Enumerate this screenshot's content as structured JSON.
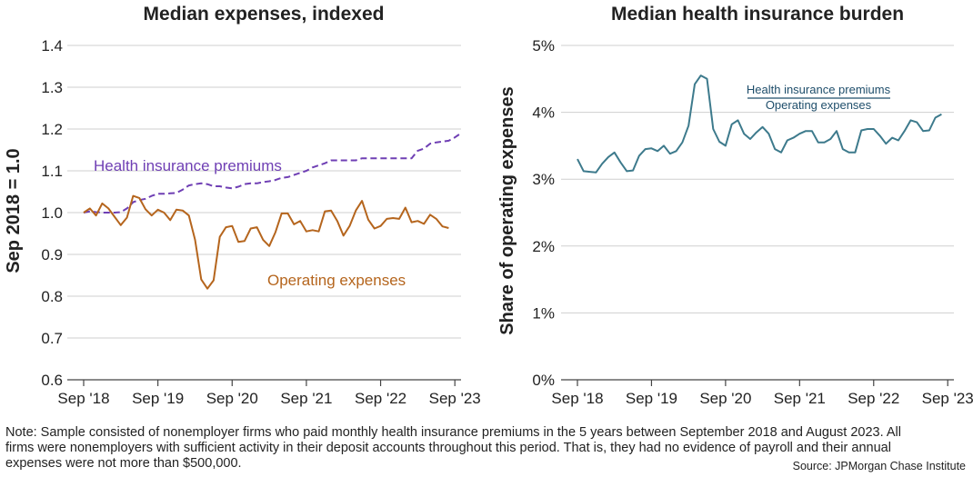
{
  "chart_data": [
    {
      "type": "line",
      "title": "Median expenses, indexed",
      "ylabel": "Sep 2018 = 1.0",
      "xlabel": "",
      "ylim": [
        0.6,
        1.4
      ],
      "yticks": [
        0.6,
        0.7,
        0.8,
        0.9,
        1.0,
        1.1,
        1.2,
        1.3,
        1.4
      ],
      "ytick_labels": [
        "0.6",
        "0.7",
        "0.8",
        "0.9",
        "1.0",
        "1.1",
        "1.2",
        "1.3",
        "1.4"
      ],
      "xlim": [
        0,
        61
      ],
      "xticks": [
        0,
        12,
        24,
        36,
        48,
        60
      ],
      "xtick_labels": [
        "Sep '18",
        "Sep '19",
        "Sep '20",
        "Sep '21",
        "Sep '22",
        "Sep '23"
      ],
      "grid": true,
      "series": [
        {
          "name": "Health insurance premiums",
          "style": "dashed",
          "color": "#6f3fb4",
          "values": [
            1.0,
            1.003,
            1.001,
            1.0,
            1.0,
            1.0,
            1.001,
            1.01,
            1.025,
            1.03,
            1.033,
            1.04,
            1.045,
            1.045,
            1.046,
            1.047,
            1.055,
            1.065,
            1.068,
            1.07,
            1.068,
            1.063,
            1.063,
            1.06,
            1.058,
            1.062,
            1.068,
            1.07,
            1.07,
            1.073,
            1.075,
            1.078,
            1.083,
            1.085,
            1.09,
            1.095,
            1.1,
            1.108,
            1.113,
            1.118,
            1.125,
            1.125,
            1.125,
            1.125,
            1.125,
            1.13,
            1.13,
            1.13,
            1.13,
            1.13,
            1.13,
            1.13,
            1.13,
            1.13,
            1.148,
            1.153,
            1.165,
            1.168,
            1.17,
            1.172,
            1.18,
            1.19
          ]
        },
        {
          "name": "Operating expenses",
          "style": "solid",
          "color": "#b5651d",
          "values": [
            1.0,
            1.01,
            0.993,
            1.022,
            1.01,
            0.99,
            0.97,
            0.988,
            1.04,
            1.035,
            1.008,
            0.993,
            1.007,
            1.0,
            0.982,
            1.007,
            1.005,
            0.993,
            0.935,
            0.84,
            0.818,
            0.838,
            0.942,
            0.965,
            0.968,
            0.93,
            0.932,
            0.962,
            0.965,
            0.935,
            0.92,
            0.953,
            0.998,
            0.998,
            0.972,
            0.98,
            0.955,
            0.958,
            0.955,
            1.003,
            1.005,
            0.98,
            0.945,
            0.968,
            1.005,
            1.028,
            0.983,
            0.962,
            0.968,
            0.985,
            0.987,
            0.985,
            1.012,
            0.977,
            0.98,
            0.973,
            0.995,
            0.985,
            0.967,
            0.963
          ]
        }
      ],
      "annotations": [
        "Health insurance premiums",
        "Operating expenses"
      ]
    },
    {
      "type": "line",
      "title": "Median health insurance burden",
      "ylabel": "Share of operating expenses",
      "xlabel": "",
      "ylim": [
        0,
        5
      ],
      "yticks": [
        0,
        1,
        2,
        3,
        4,
        5
      ],
      "ytick_labels": [
        "0%",
        "1%",
        "2%",
        "3%",
        "4%",
        "5%"
      ],
      "xlim": [
        0,
        61
      ],
      "xticks": [
        0,
        12,
        24,
        36,
        48,
        60
      ],
      "xtick_labels": [
        "Sep '18",
        "Sep '19",
        "Sep '20",
        "Sep '21",
        "Sep '22",
        "Sep '23"
      ],
      "grid": true,
      "series": [
        {
          "name": "Health insurance premiums / Operating expenses",
          "style": "solid",
          "color": "#3d7a8c",
          "values": [
            3.3,
            3.12,
            3.11,
            3.1,
            3.23,
            3.33,
            3.4,
            3.25,
            3.12,
            3.13,
            3.35,
            3.45,
            3.46,
            3.42,
            3.5,
            3.38,
            3.42,
            3.55,
            3.8,
            4.42,
            4.55,
            4.5,
            3.75,
            3.56,
            3.5,
            3.82,
            3.88,
            3.68,
            3.6,
            3.7,
            3.78,
            3.68,
            3.45,
            3.4,
            3.58,
            3.62,
            3.68,
            3.72,
            3.72,
            3.55,
            3.55,
            3.6,
            3.72,
            3.45,
            3.4,
            3.4,
            3.73,
            3.75,
            3.75,
            3.65,
            3.53,
            3.62,
            3.58,
            3.72,
            3.88,
            3.85,
            3.72,
            3.73,
            3.92,
            3.97
          ]
        }
      ],
      "legend_label": {
        "numerator": "Health insurance premiums",
        "denominator": "Operating expenses"
      }
    }
  ],
  "note": {
    "lines": [
      "Note: Sample consisted of nonemployer firms who paid monthly health insurance premiums in the 5 years between September 2018 and August 2023. All",
      "firms were nonemployers with sufficient activity in their deposit accounts throughout this period. That is, they had no evidence of payroll and their annual",
      "expenses were not more than $500,000."
    ],
    "source": "Source: JPMorgan Chase Institute"
  }
}
